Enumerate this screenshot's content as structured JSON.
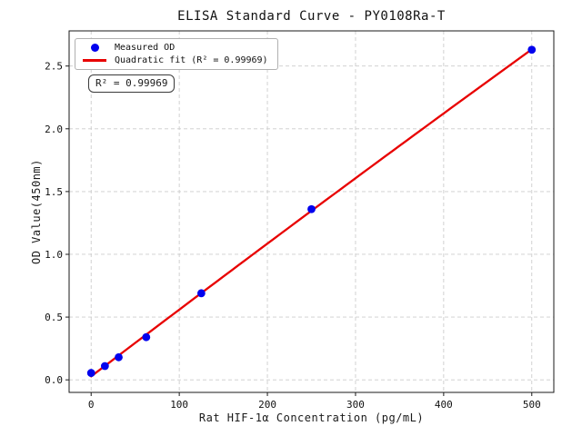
{
  "figure": {
    "title": "ELISA Standard Curve - PY0108Ra-T",
    "xlabel": "Rat HIF-1α Concentration (pg/mL)",
    "ylabel": "OD Value(450nm)",
    "annotation_text": "R² = 0.99969",
    "legend": {
      "items": [
        {
          "label": "Measured OD",
          "marker": "dot",
          "color": "#0202ee"
        },
        {
          "label": "Quadratic fit (R² = 0.99969)",
          "marker": "line",
          "color": "#e80000"
        }
      ]
    },
    "colors": {
      "marker": "#0202ee",
      "fit_line": "#e80000",
      "grid": "#cccccc",
      "spine": "#1a1a1a",
      "background": "#ffffff"
    }
  },
  "chart_data": {
    "type": "scatter",
    "title": "ELISA Standard Curve - PY0108Ra-T",
    "xlabel": "Rat HIF-1α Concentration (pg/mL)",
    "ylabel": "OD Value(450nm)",
    "xlim": [
      -25,
      525
    ],
    "ylim": [
      -0.1,
      2.78
    ],
    "x_ticks": [
      0,
      100,
      200,
      300,
      400,
      500
    ],
    "y_ticks": [
      0.0,
      0.5,
      1.0,
      1.5,
      2.0,
      2.5
    ],
    "grid": true,
    "legend_position": "upper left",
    "r_squared": 0.99969,
    "series": [
      {
        "name": "Measured OD",
        "type": "scatter",
        "color": "#0202ee",
        "x": [
          0,
          15.625,
          31.25,
          62.5,
          125,
          250,
          500
        ],
        "y": [
          0.055,
          0.11,
          0.18,
          0.34,
          0.69,
          1.36,
          2.63
        ]
      },
      {
        "name": "Quadratic fit (R² = 0.99969)",
        "type": "line",
        "fit": "quadratic",
        "color": "#e80000",
        "r_squared": 0.99969
      }
    ]
  }
}
